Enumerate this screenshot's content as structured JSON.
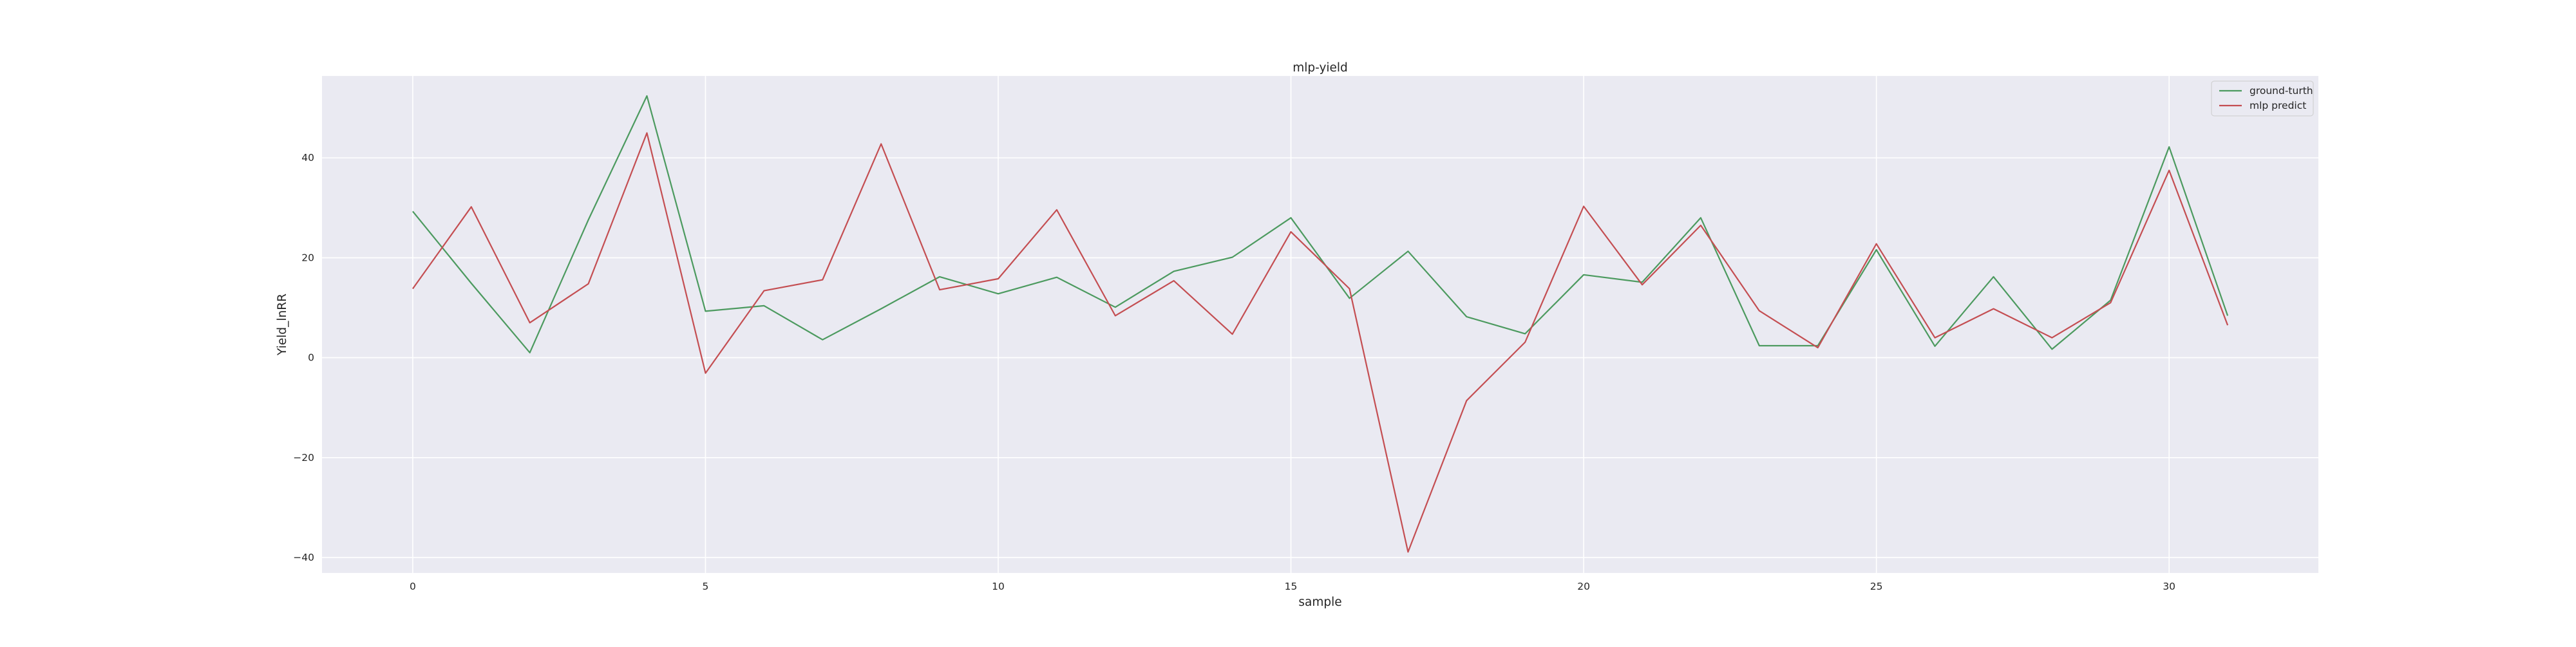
{
  "chart_data": {
    "type": "line",
    "title": "mlp-yield",
    "xlabel": "sample",
    "ylabel": "Yield_lnRR",
    "xlim": [
      -1.55,
      32.55
    ],
    "ylim": [
      -43.1,
      56.4
    ],
    "xticks": [
      0,
      5,
      10,
      15,
      20,
      25,
      30
    ],
    "yticks": [
      -40,
      -20,
      0,
      20,
      40
    ],
    "ytick_labels": [
      "−40",
      "−20",
      "0",
      "20",
      "40"
    ],
    "grid": true,
    "legend_position": "top-right",
    "x": [
      0,
      1,
      2,
      3,
      4,
      5,
      6,
      7,
      8,
      9,
      10,
      11,
      12,
      13,
      14,
      15,
      16,
      17,
      18,
      19,
      20,
      21,
      22,
      23,
      24,
      25,
      26,
      27,
      28,
      29,
      30,
      31
    ],
    "series": [
      {
        "name": "ground-turth",
        "color": "#4c9a5f",
        "values": [
          29.3,
          14.9,
          1.0,
          27.6,
          52.4,
          9.3,
          10.4,
          3.6,
          9.8,
          16.2,
          12.8,
          16.1,
          10.1,
          17.3,
          20.1,
          28.0,
          11.9,
          21.3,
          8.2,
          4.8,
          16.6,
          15.1,
          28.0,
          2.4,
          2.4,
          21.6,
          2.3,
          16.2,
          1.7,
          11.5,
          42.2,
          8.4
        ]
      },
      {
        "name": "mlp predict",
        "color": "#c44e52",
        "values": [
          13.8,
          30.2,
          7.0,
          14.8,
          45.0,
          -3.1,
          13.4,
          15.6,
          42.8,
          13.6,
          15.8,
          29.6,
          8.4,
          15.4,
          4.7,
          25.2,
          13.8,
          -38.9,
          -8.6,
          3.1,
          30.3,
          14.6,
          26.5,
          9.4,
          2.0,
          22.8,
          4.0,
          9.8,
          4.0,
          11.0,
          37.5,
          6.5
        ]
      }
    ]
  }
}
